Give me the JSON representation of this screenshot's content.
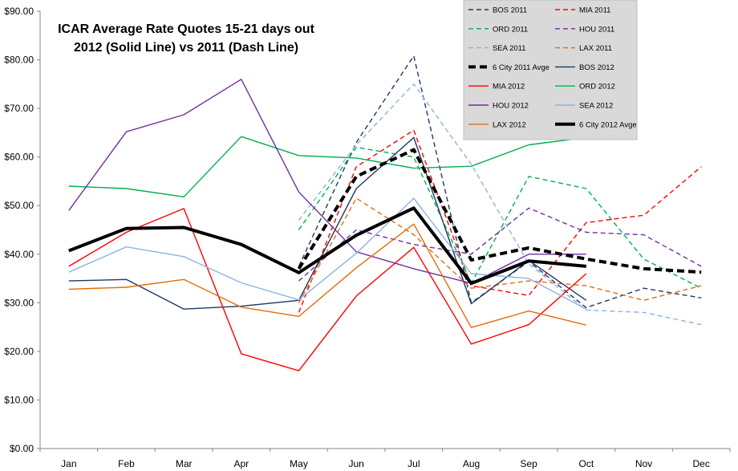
{
  "chart_data": {
    "type": "line",
    "title": "ICAR Average Rate  Quotes 15-21 days out",
    "subtitle": "2012 (Solid Line) vs 2011 (Dash Line)",
    "xlabel": "",
    "ylabel": "",
    "categories": [
      "Jan",
      "Feb",
      "Mar",
      "Apr",
      "May",
      "Jun",
      "Jul",
      "Aug",
      "Sep",
      "Oct",
      "Nov",
      "Dec"
    ],
    "ylim": [
      0,
      90
    ],
    "yticks": [
      0,
      10,
      20,
      30,
      40,
      50,
      60,
      70,
      80,
      90
    ],
    "ytick_labels": [
      "$0.00",
      "$10.00",
      "$20.00",
      "$30.00",
      "$40.00",
      "$50.00",
      "$60.00",
      "$70.00",
      "$80.00",
      "$90.00"
    ],
    "grid": false,
    "legend_position": "top-right",
    "series": [
      {
        "name": "BOS 2011",
        "color": "#1f3864",
        "dash": true,
        "bold": false,
        "values": [
          null,
          null,
          null,
          null,
          37.5,
          63.0,
          80.8,
          30.0,
          38.5,
          29.0,
          33.0,
          31.0
        ]
      },
      {
        "name": "MIA 2011",
        "color": "#ff0000",
        "dash": true,
        "bold": false,
        "values": [
          null,
          null,
          null,
          null,
          28.0,
          58.0,
          65.5,
          33.5,
          31.5,
          46.5,
          48.0,
          58.0
        ]
      },
      {
        "name": "ORD 2011",
        "color": "#00b050",
        "dash": true,
        "bold": false,
        "values": [
          null,
          null,
          null,
          null,
          45.0,
          62.0,
          60.0,
          34.0,
          56.0,
          53.5,
          39.0,
          33.0
        ]
      },
      {
        "name": "HOU 2011",
        "color": "#7030a0",
        "dash": true,
        "bold": false,
        "values": [
          null,
          null,
          null,
          null,
          34.5,
          45.0,
          42.0,
          40.0,
          49.5,
          44.5,
          44.0,
          37.5
        ]
      },
      {
        "name": "SEA 2011",
        "color": "#8db3e2",
        "dash": true,
        "bold": false,
        "values": [
          null,
          null,
          null,
          null,
          47.0,
          62.5,
          75.0,
          58.5,
          38.0,
          28.5,
          28.0,
          25.5
        ]
      },
      {
        "name": "LAX 2011",
        "color": "#e46c0a",
        "dash": true,
        "bold": false,
        "values": [
          null,
          null,
          null,
          null,
          30.0,
          51.5,
          44.0,
          33.0,
          34.5,
          33.5,
          30.5,
          33.5
        ]
      },
      {
        "name": "6 City 2011 Avge",
        "color": "#000000",
        "dash": true,
        "bold": true,
        "values": [
          null,
          null,
          null,
          null,
          37.0,
          56.0,
          61.5,
          38.8,
          41.3,
          39.0,
          37.0,
          36.3
        ]
      },
      {
        "name": "BOS 2012",
        "color": "#1f3864",
        "dash": false,
        "bold": false,
        "values": [
          34.5,
          34.8,
          28.7,
          29.3,
          30.5,
          53.5,
          64.0,
          29.8,
          38.7,
          30.5,
          null,
          null
        ]
      },
      {
        "name": "MIA 2012",
        "color": "#ff0000",
        "dash": false,
        "bold": false,
        "values": [
          37.5,
          44.5,
          49.4,
          19.5,
          16.0,
          31.4,
          41.4,
          21.5,
          25.5,
          36.0,
          null,
          null
        ]
      },
      {
        "name": "ORD 2012",
        "color": "#00b050",
        "dash": false,
        "bold": false,
        "values": [
          54.0,
          53.5,
          51.8,
          64.2,
          60.3,
          59.8,
          57.7,
          58.1,
          62.5,
          64.0,
          null,
          null
        ]
      },
      {
        "name": "HOU 2012",
        "color": "#7030a0",
        "dash": false,
        "bold": false,
        "values": [
          49.0,
          65.2,
          68.7,
          76.0,
          52.8,
          40.5,
          37.0,
          34.0,
          40.0,
          40.0,
          null,
          null
        ]
      },
      {
        "name": "SEA 2012",
        "color": "#8db3e2",
        "dash": false,
        "bold": false,
        "values": [
          36.3,
          41.5,
          39.5,
          34.1,
          30.6,
          40.2,
          51.5,
          36.0,
          35.0,
          28.7,
          null,
          null
        ]
      },
      {
        "name": "LAX 2012",
        "color": "#e46c0a",
        "dash": false,
        "bold": false,
        "values": [
          32.8,
          33.2,
          34.8,
          29.1,
          27.2,
          37.2,
          46.2,
          24.9,
          28.3,
          25.4,
          null,
          null
        ]
      },
      {
        "name": "6 City 2012 Avge",
        "color": "#000000",
        "dash": false,
        "bold": true,
        "values": [
          40.7,
          45.3,
          45.5,
          42.0,
          36.2,
          43.9,
          49.5,
          34.0,
          38.6,
          37.5,
          null,
          null
        ]
      }
    ]
  }
}
